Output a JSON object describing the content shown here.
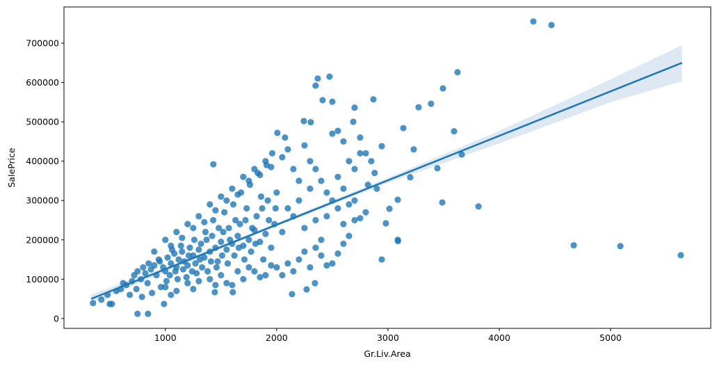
{
  "chart_data": {
    "type": "scatter",
    "xlabel": "Gr.Liv.Area",
    "ylabel": "SalePrice",
    "xlim": [
      89,
      5900
    ],
    "ylim": [
      -25000,
      792000
    ],
    "xticks": [
      1000,
      2000,
      3000,
      4000,
      5000
    ],
    "yticks": [
      0,
      100000,
      200000,
      300000,
      400000,
      500000,
      600000,
      700000
    ],
    "grid": false,
    "colors": {
      "points": "#1f77b4",
      "line": "#1f77b4",
      "ci": "#dce7f2"
    },
    "regression": {
      "x": [
        334,
        5642
      ],
      "y": [
        50000,
        650000
      ]
    },
    "ci_band": {
      "x": [
        334,
        1000,
        2000,
        3000,
        4000,
        5000,
        5642
      ],
      "lower": [
        39000,
        119000,
        235000,
        345000,
        445000,
        550000,
        603000
      ],
      "upper": [
        61000,
        130000,
        243000,
        358000,
        477000,
        608000,
        695000
      ]
    },
    "points": [
      [
        4306,
        755000
      ],
      [
        4469,
        746000
      ],
      [
        3625,
        626000
      ],
      [
        3494,
        585000
      ],
      [
        3387,
        546000
      ],
      [
        3275,
        537000
      ],
      [
        3138,
        484000
      ],
      [
        3594,
        476000
      ],
      [
        3231,
        430000
      ],
      [
        3663,
        417000
      ],
      [
        3444,
        382000
      ],
      [
        3200,
        359000
      ],
      [
        3088,
        302000
      ],
      [
        3013,
        279000
      ],
      [
        3488,
        295000
      ],
      [
        3813,
        285000
      ],
      [
        4669,
        186000
      ],
      [
        5088,
        184000
      ],
      [
        5631,
        161000
      ],
      [
        3088,
        200000
      ],
      [
        3090,
        197000
      ],
      [
        2944,
        150000
      ],
      [
        2981,
        242000
      ],
      [
        2944,
        438000
      ],
      [
        2869,
        557000
      ],
      [
        2700,
        536000
      ],
      [
        2688,
        500000
      ],
      [
        2475,
        615000
      ],
      [
        2369,
        610000
      ],
      [
        2350,
        592000
      ],
      [
        2413,
        555000
      ],
      [
        2500,
        551000
      ],
      [
        2244,
        502000
      ],
      [
        2306,
        499000
      ],
      [
        2006,
        472000
      ],
      [
        2075,
        460000
      ],
      [
        1431,
        392000
      ],
      [
        2550,
        477000
      ],
      [
        750,
        12000
      ],
      [
        844,
        12000
      ],
      [
        350,
        39000
      ],
      [
        425,
        48000
      ],
      [
        500,
        37000
      ],
      [
        519,
        37000
      ],
      [
        988,
        37000
      ],
      [
        1444,
        67000
      ],
      [
        1606,
        67000
      ],
      [
        2138,
        62000
      ],
      [
        2269,
        74000
      ],
      [
        2344,
        90000
      ],
      [
        480,
        60000
      ],
      [
        560,
        70000
      ],
      [
        600,
        75000
      ],
      [
        620,
        90000
      ],
      [
        650,
        85000
      ],
      [
        680,
        60000
      ],
      [
        700,
        95000
      ],
      [
        720,
        110000
      ],
      [
        740,
        75000
      ],
      [
        750,
        120000
      ],
      [
        780,
        100000
      ],
      [
        790,
        55000
      ],
      [
        800,
        130000
      ],
      [
        820,
        115000
      ],
      [
        840,
        90000
      ],
      [
        850,
        140000
      ],
      [
        870,
        125000
      ],
      [
        880,
        65000
      ],
      [
        900,
        135000
      ],
      [
        920,
        110000
      ],
      [
        940,
        150000
      ],
      [
        950,
        145000
      ],
      [
        960,
        80000
      ],
      [
        980,
        130000
      ],
      [
        1000,
        120000
      ],
      [
        1010,
        95000
      ],
      [
        1020,
        155000
      ],
      [
        1040,
        110000
      ],
      [
        1050,
        140000
      ],
      [
        1060,
        175000
      ],
      [
        1080,
        165000
      ],
      [
        1090,
        120000
      ],
      [
        1100,
        130000
      ],
      [
        1110,
        100000
      ],
      [
        1120,
        150000
      ],
      [
        1140,
        185000
      ],
      [
        1150,
        170000
      ],
      [
        1160,
        125000
      ],
      [
        1170,
        145000
      ],
      [
        1190,
        105000
      ],
      [
        1200,
        135000
      ],
      [
        1210,
        160000
      ],
      [
        1220,
        180000
      ],
      [
        1240,
        120000
      ],
      [
        1250,
        160000
      ],
      [
        1260,
        200000
      ],
      [
        1270,
        140000
      ],
      [
        1280,
        115000
      ],
      [
        1300,
        175000
      ],
      [
        1310,
        150000
      ],
      [
        1320,
        190000
      ],
      [
        1330,
        130000
      ],
      [
        1350,
        155000
      ],
      [
        1360,
        220000
      ],
      [
        1370,
        200000
      ],
      [
        1380,
        120000
      ],
      [
        1400,
        170000
      ],
      [
        1410,
        145000
      ],
      [
        1420,
        210000
      ],
      [
        1430,
        250000
      ],
      [
        1450,
        180000
      ],
      [
        1460,
        130000
      ],
      [
        1470,
        145000
      ],
      [
        1480,
        230000
      ],
      [
        1500,
        195000
      ],
      [
        1510,
        160000
      ],
      [
        1520,
        220000
      ],
      [
        1530,
        270000
      ],
      [
        1550,
        175000
      ],
      [
        1560,
        140000
      ],
      [
        1570,
        230000
      ],
      [
        1580,
        200000
      ],
      [
        1600,
        190000
      ],
      [
        1610,
        290000
      ],
      [
        1620,
        160000
      ],
      [
        1630,
        250000
      ],
      [
        1650,
        210000
      ],
      [
        1660,
        180000
      ],
      [
        1670,
        240000
      ],
      [
        1680,
        320000
      ],
      [
        1700,
        185000
      ],
      [
        1710,
        150000
      ],
      [
        1720,
        250000
      ],
      [
        1730,
        280000
      ],
      [
        1750,
        200000
      ],
      [
        1760,
        340000
      ],
      [
        1770,
        170000
      ],
      [
        1780,
        230000
      ],
      [
        1800,
        225000
      ],
      [
        1810,
        190000
      ],
      [
        1820,
        260000
      ],
      [
        1830,
        370000
      ],
      [
        1850,
        195000
      ],
      [
        1860,
        310000
      ],
      [
        1870,
        280000
      ],
      [
        1880,
        150000
      ],
      [
        1900,
        215000
      ],
      [
        1910,
        390000
      ],
      [
        1920,
        300000
      ],
      [
        1930,
        250000
      ],
      [
        1950,
        180000
      ],
      [
        1960,
        420000
      ],
      [
        1980,
        240000
      ],
      [
        1990,
        280000
      ],
      [
        2000,
        320000
      ],
      [
        900,
        170000
      ],
      [
        1000,
        200000
      ],
      [
        1050,
        185000
      ],
      [
        1100,
        220000
      ],
      [
        1150,
        205000
      ],
      [
        1200,
        240000
      ],
      [
        1250,
        230000
      ],
      [
        1300,
        260000
      ],
      [
        1350,
        245000
      ],
      [
        1400,
        290000
      ],
      [
        1450,
        275000
      ],
      [
        1500,
        310000
      ],
      [
        1550,
        300000
      ],
      [
        1600,
        330000
      ],
      [
        1650,
        315000
      ],
      [
        1700,
        360000
      ],
      [
        1750,
        350000
      ],
      [
        1800,
        380000
      ],
      [
        1850,
        365000
      ],
      [
        1900,
        400000
      ],
      [
        1950,
        385000
      ],
      [
        2050,
        410000
      ],
      [
        2100,
        430000
      ],
      [
        2150,
        380000
      ],
      [
        2250,
        440000
      ],
      [
        2300,
        400000
      ],
      [
        1000,
        80000
      ],
      [
        1050,
        60000
      ],
      [
        1100,
        70000
      ],
      [
        1200,
        90000
      ],
      [
        1250,
        75000
      ],
      [
        1300,
        95000
      ],
      [
        1400,
        100000
      ],
      [
        1450,
        85000
      ],
      [
        1500,
        110000
      ],
      [
        1550,
        90000
      ],
      [
        1600,
        85000
      ],
      [
        1650,
        120000
      ],
      [
        1700,
        100000
      ],
      [
        1750,
        130000
      ],
      [
        1800,
        120000
      ],
      [
        1850,
        105000
      ],
      [
        1900,
        110000
      ],
      [
        1950,
        135000
      ],
      [
        2000,
        130000
      ],
      [
        2050,
        110000
      ],
      [
        2100,
        140000
      ],
      [
        2150,
        120000
      ],
      [
        2200,
        150000
      ],
      [
        2250,
        170000
      ],
      [
        2300,
        130000
      ],
      [
        2350,
        180000
      ],
      [
        2400,
        160000
      ],
      [
        2450,
        135000
      ],
      [
        2500,
        140000
      ],
      [
        2550,
        165000
      ],
      [
        2600,
        190000
      ],
      [
        2650,
        210000
      ],
      [
        2700,
        250000
      ],
      [
        2750,
        255000
      ],
      [
        2050,
        220000
      ],
      [
        2100,
        280000
      ],
      [
        2150,
        260000
      ],
      [
        2200,
        300000
      ],
      [
        2200,
        350000
      ],
      [
        2250,
        230000
      ],
      [
        2300,
        330000
      ],
      [
        2350,
        250000
      ],
      [
        2350,
        380000
      ],
      [
        2400,
        350000
      ],
      [
        2400,
        200000
      ],
      [
        2450,
        260000
      ],
      [
        2450,
        320000
      ],
      [
        2500,
        300000
      ],
      [
        2500,
        470000
      ],
      [
        2550,
        360000
      ],
      [
        2550,
        280000
      ],
      [
        2600,
        330000
      ],
      [
        2600,
        240000
      ],
      [
        2600,
        450000
      ],
      [
        2650,
        400000
      ],
      [
        2650,
        290000
      ],
      [
        2700,
        380000
      ],
      [
        2700,
        300000
      ],
      [
        2750,
        460000
      ],
      [
        2750,
        420000
      ],
      [
        2800,
        420000
      ],
      [
        2800,
        270000
      ],
      [
        2820,
        340000
      ],
      [
        2850,
        400000
      ],
      [
        2900,
        330000
      ],
      [
        2880,
        370000
      ]
    ]
  }
}
